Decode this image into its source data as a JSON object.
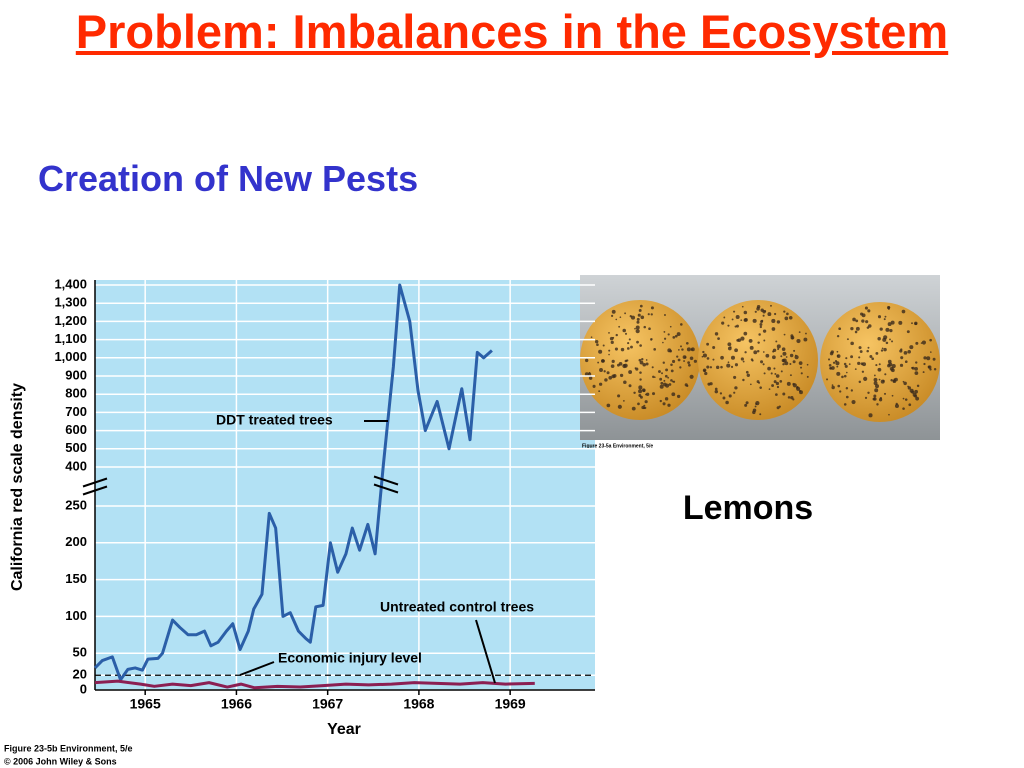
{
  "slide": {
    "title": "Problem: Imbalances in the Ecosystem",
    "subtitle": "Creation of New Pests",
    "image_label": "Lemons",
    "image_caption": "Figure 23-5a Environment, 5/e",
    "figure_caption": [
      "Figure 23-5b Environment, 5/e",
      "© 2006 John Wiley & Sons"
    ]
  },
  "chart_data": {
    "type": "line",
    "x_label": "Year",
    "y_label": "California red scale density",
    "xlim": [
      1964.45,
      1969.93
    ],
    "xticks": [
      1965,
      1966,
      1967,
      1968,
      1969
    ],
    "ylim": [
      0,
      1400
    ],
    "yticks": [
      0,
      20,
      50,
      100,
      150,
      200,
      250,
      400,
      500,
      600,
      700,
      800,
      900,
      {
        "value": 1000,
        "label": "1,000"
      },
      {
        "value": 1100,
        "label": "1,100"
      },
      {
        "value": 1200,
        "label": "1,200"
      },
      {
        "value": 1300,
        "label": "1,300"
      },
      {
        "value": 1400,
        "label": "1,400"
      }
    ],
    "y_break": {
      "from": 250,
      "to": 400
    },
    "grid": true,
    "reference_line": {
      "value": 20,
      "label": "Economic injury level"
    },
    "series": [
      {
        "name": "DDT treated trees",
        "color": "#2b5fa8",
        "x": [
          1964.45,
          1964.53,
          1964.64,
          1964.73,
          1964.81,
          1964.89,
          1964.97,
          1965.03,
          1965.14,
          1965.19,
          1965.3,
          1965.38,
          1965.47,
          1965.56,
          1965.65,
          1965.72,
          1965.8,
          1965.89,
          1965.96,
          1966.04,
          1966.13,
          1966.19,
          1966.28,
          1966.36,
          1966.43,
          1966.51,
          1966.59,
          1966.68,
          1966.76,
          1966.81,
          1966.87,
          1966.95,
          1967.03,
          1967.11,
          1967.2,
          1967.27,
          1967.35,
          1967.44,
          1967.52,
          1967.61,
          1967.72,
          1967.79,
          1967.9,
          1967.99,
          1968.07,
          1968.2,
          1968.33,
          1968.47,
          1968.56,
          1968.64,
          1968.71,
          1968.8
        ],
        "values": [
          30,
          40,
          45,
          14,
          28,
          30,
          27,
          42,
          43,
          50,
          95,
          85,
          75,
          75,
          80,
          60,
          65,
          80,
          90,
          55,
          80,
          110,
          130,
          240,
          220,
          100,
          105,
          80,
          70,
          65,
          113,
          115,
          200,
          160,
          185,
          220,
          190,
          225,
          185,
          410,
          950,
          1400,
          1200,
          820,
          600,
          760,
          500,
          830,
          550,
          1030,
          1000,
          1040
        ]
      },
      {
        "name": "Untreated control trees",
        "color": "#8b1f52",
        "x": [
          1964.45,
          1964.7,
          1964.95,
          1965.1,
          1965.3,
          1965.5,
          1965.7,
          1965.9,
          1966.05,
          1966.2,
          1966.45,
          1966.7,
          1966.95,
          1967.2,
          1967.45,
          1967.7,
          1967.95,
          1968.2,
          1968.45,
          1968.7,
          1968.95,
          1969.27
        ],
        "values": [
          10,
          12,
          8,
          5,
          8,
          6,
          10,
          4,
          8,
          3,
          5,
          4,
          6,
          8,
          7,
          8,
          10,
          9,
          8,
          10,
          8,
          9
        ]
      }
    ]
  }
}
